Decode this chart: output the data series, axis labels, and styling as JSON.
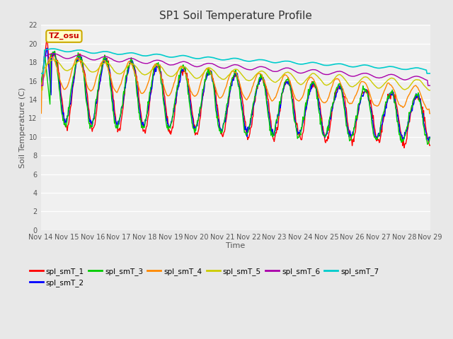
{
  "title": "SP1 Soil Temperature Profile",
  "xlabel": "Time",
  "ylabel": "Soil Temperature (C)",
  "ylim": [
    0,
    22
  ],
  "yticks": [
    0,
    2,
    4,
    6,
    8,
    10,
    12,
    14,
    16,
    18,
    20,
    22
  ],
  "series_colors": {
    "spl_smT_1": "#FF0000",
    "spl_smT_2": "#0000FF",
    "spl_smT_3": "#00CC00",
    "spl_smT_4": "#FF8800",
    "spl_smT_5": "#CCCC00",
    "spl_smT_6": "#AA00AA",
    "spl_smT_7": "#00CCCC"
  },
  "tz_label": "TZ_osu",
  "background_color": "#E8E8E8",
  "plot_bg_color": "#F0F0F0",
  "n_days": 15,
  "x_tick_labels": [
    "Nov 14",
    "Nov 15",
    "Nov 16",
    "Nov 17",
    "Nov 18",
    "Nov 19",
    "Nov 20",
    "Nov 21",
    "Nov 22",
    "Nov 23",
    "Nov 24",
    "Nov 25",
    "Nov 26",
    "Nov 27",
    "Nov 28",
    "Nov 29"
  ]
}
